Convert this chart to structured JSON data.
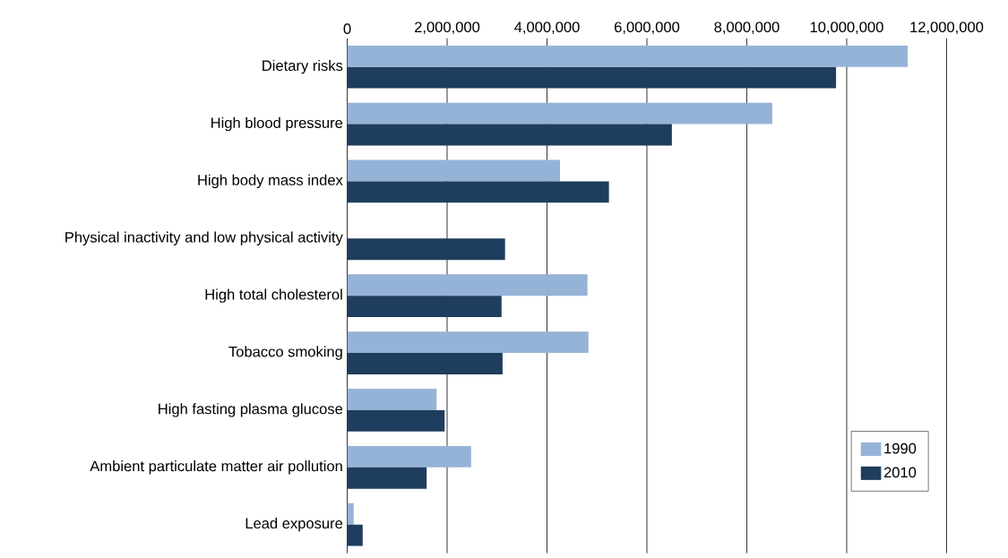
{
  "chart_data": {
    "type": "bar",
    "orientation": "horizontal",
    "categories": [
      "Dietary risks",
      "High blood pressure",
      "High body mass index",
      "Physical inactivity and low physical activity",
      "High total cholesterol",
      "Tobacco smoking",
      "High fasting plasma glucose",
      "Ambient particulate matter air pollution",
      "Lead exposure"
    ],
    "series": [
      {
        "name": "1990",
        "color": "#95b3d7",
        "values": [
          11220000,
          8510000,
          4260000,
          null,
          4810000,
          4830000,
          1790000,
          2480000,
          130000
        ]
      },
      {
        "name": "2010",
        "color": "#1f3d5e",
        "values": [
          9790000,
          6500000,
          5240000,
          3160000,
          3090000,
          3110000,
          1950000,
          1590000,
          310000
        ]
      }
    ],
    "xlim": [
      0,
      12000000
    ],
    "xticks": [
      0,
      {
        "value": 2000000,
        "label": "2,000,000"
      },
      {
        "value": 4000000,
        "label": "4,000,000"
      },
      {
        "value": 6000000,
        "label": "6,000,000"
      },
      {
        "value": 8000000,
        "label": "8,000,000"
      },
      {
        "value": 10000000,
        "label": "10,000,000"
      },
      {
        "value": 12000000,
        "label": "12,000,000"
      }
    ],
    "grid": "x",
    "legend": "bottom right"
  }
}
